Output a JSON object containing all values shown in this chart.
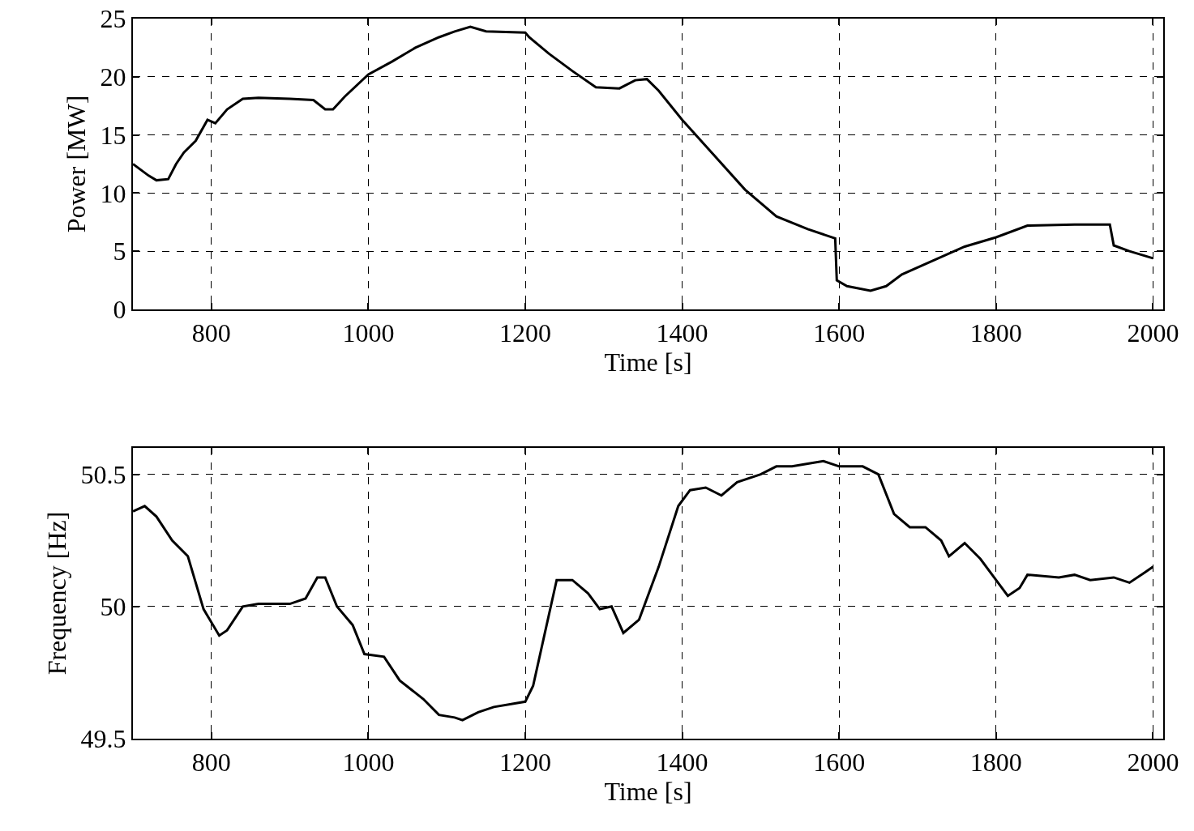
{
  "chart_data": [
    {
      "type": "line",
      "xlabel": "Time [s]",
      "ylabel": "Power [MW]",
      "xlim": [
        700,
        2013
      ],
      "xticks": [
        800,
        1000,
        1200,
        1400,
        1600,
        1800,
        2000
      ],
      "ylim": [
        0,
        25
      ],
      "yticks": [
        0,
        5,
        10,
        15,
        20,
        25
      ],
      "grid": true,
      "marker": "none",
      "line_style": "solid",
      "series": [
        {
          "color": "#000000",
          "x": [
            700,
            720,
            730,
            745,
            755,
            765,
            780,
            795,
            805,
            820,
            840,
            860,
            900,
            930,
            945,
            955,
            970,
            1000,
            1030,
            1060,
            1090,
            1110,
            1130,
            1150,
            1200,
            1205,
            1230,
            1260,
            1290,
            1320,
            1340,
            1355,
            1370,
            1400,
            1440,
            1480,
            1520,
            1560,
            1595,
            1597,
            1610,
            1640,
            1660,
            1680,
            1720,
            1760,
            1800,
            1840,
            1900,
            1945,
            1950,
            1970,
            2000
          ],
          "values": [
            12.5,
            11.5,
            11.1,
            11.2,
            12.5,
            13.5,
            14.5,
            16.3,
            16.0,
            17.2,
            18.1,
            18.2,
            18.1,
            18.0,
            17.2,
            17.2,
            18.3,
            20.2,
            21.3,
            22.5,
            23.4,
            23.9,
            24.3,
            23.9,
            23.8,
            23.4,
            22.0,
            20.5,
            19.1,
            19.0,
            19.7,
            19.8,
            18.8,
            16.3,
            13.3,
            10.3,
            8.0,
            6.9,
            6.1,
            2.5,
            2.0,
            1.6,
            2.0,
            3.0,
            4.2,
            5.4,
            6.2,
            7.2,
            7.3,
            7.3,
            5.5,
            5.0,
            4.4
          ]
        }
      ]
    },
    {
      "type": "line",
      "xlabel": "Time [s]",
      "ylabel": "Frequency [Hz]",
      "xlim": [
        700,
        2013
      ],
      "xticks": [
        800,
        1000,
        1200,
        1400,
        1600,
        1800,
        2000
      ],
      "ylim": [
        49.5,
        50.6
      ],
      "yticks": [
        49.5,
        50,
        50.5
      ],
      "grid": true,
      "marker": "none",
      "line_style": "solid",
      "series": [
        {
          "color": "#000000",
          "x": [
            700,
            715,
            730,
            750,
            770,
            790,
            810,
            820,
            840,
            860,
            900,
            920,
            935,
            945,
            960,
            980,
            995,
            1020,
            1040,
            1070,
            1090,
            1110,
            1120,
            1140,
            1160,
            1200,
            1210,
            1225,
            1240,
            1260,
            1280,
            1295,
            1310,
            1325,
            1345,
            1370,
            1395,
            1410,
            1430,
            1450,
            1470,
            1500,
            1520,
            1540,
            1560,
            1580,
            1600,
            1630,
            1650,
            1670,
            1690,
            1710,
            1730,
            1740,
            1760,
            1780,
            1800,
            1815,
            1830,
            1840,
            1880,
            1900,
            1920,
            1950,
            1970,
            1990,
            2000
          ],
          "values": [
            50.36,
            50.38,
            50.34,
            50.25,
            50.19,
            49.99,
            49.89,
            49.91,
            50.0,
            50.01,
            50.01,
            50.03,
            50.11,
            50.11,
            50.0,
            49.93,
            49.82,
            49.81,
            49.72,
            49.65,
            49.59,
            49.58,
            49.57,
            49.6,
            49.62,
            49.64,
            49.7,
            49.9,
            50.1,
            50.1,
            50.05,
            49.99,
            50.0,
            49.9,
            49.95,
            50.15,
            50.38,
            50.44,
            50.45,
            50.42,
            50.47,
            50.5,
            50.53,
            50.53,
            50.54,
            50.55,
            50.53,
            50.53,
            50.5,
            50.35,
            50.3,
            50.3,
            50.25,
            50.19,
            50.24,
            50.18,
            50.1,
            50.04,
            50.07,
            50.12,
            50.11,
            50.12,
            50.1,
            50.11,
            50.09,
            50.13,
            50.15
          ]
        }
      ]
    }
  ]
}
